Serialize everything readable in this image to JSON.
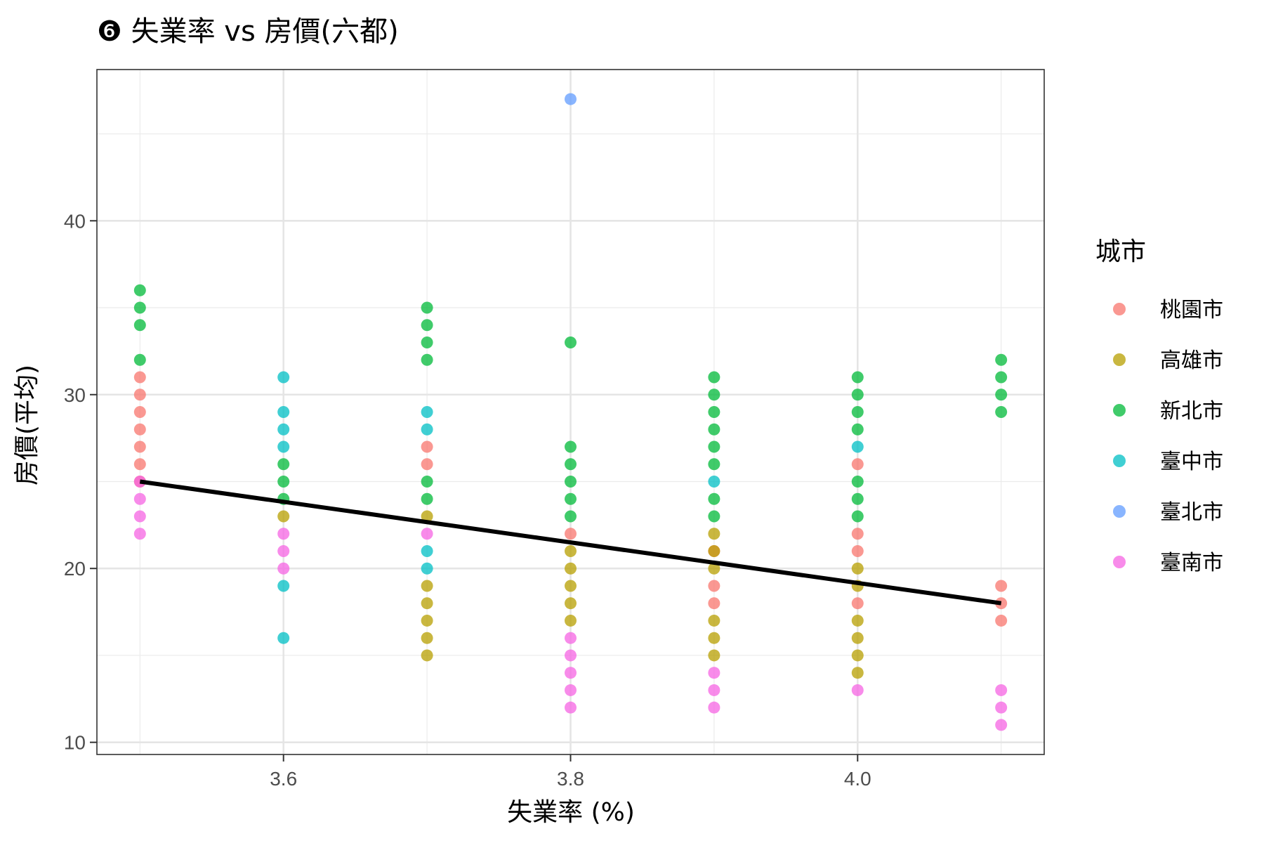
{
  "chart_data": {
    "type": "scatter",
    "title": "❻ 失業率 vs 房價(六都)",
    "xlabel": "失業率 (%)",
    "ylabel": "房價(平均)",
    "xlim": [
      3.47,
      4.13
    ],
    "ylim": [
      9.3,
      48.7
    ],
    "xticks": [
      3.6,
      3.8,
      4.0
    ],
    "xtick_labels": [
      "3.6",
      "3.8",
      "4.0"
    ],
    "yticks": [
      10,
      20,
      30,
      40
    ],
    "ytick_labels": [
      "10",
      "20",
      "30",
      "40"
    ],
    "grid": true,
    "legend": {
      "title": "城市",
      "position": "right"
    },
    "series": [
      {
        "name": "桃園市",
        "color": "#F8766D",
        "points": [
          [
            3.5,
            31
          ],
          [
            3.5,
            30
          ],
          [
            3.5,
            29
          ],
          [
            3.5,
            28
          ],
          [
            3.5,
            27
          ],
          [
            3.5,
            26
          ],
          [
            3.5,
            25
          ],
          [
            3.7,
            27
          ],
          [
            3.7,
            26
          ],
          [
            3.8,
            22
          ],
          [
            3.9,
            21
          ],
          [
            3.9,
            19
          ],
          [
            3.9,
            18
          ],
          [
            4.0,
            26
          ],
          [
            4.0,
            22
          ],
          [
            4.0,
            21
          ],
          [
            4.0,
            18
          ],
          [
            4.1,
            19
          ],
          [
            4.1,
            18
          ],
          [
            4.1,
            17
          ]
        ]
      },
      {
        "name": "高雄市",
        "color": "#B79F00",
        "points": [
          [
            3.6,
            23
          ],
          [
            3.7,
            23
          ],
          [
            3.7,
            19
          ],
          [
            3.7,
            18
          ],
          [
            3.7,
            17
          ],
          [
            3.7,
            16
          ],
          [
            3.7,
            15
          ],
          [
            3.8,
            21
          ],
          [
            3.8,
            20
          ],
          [
            3.8,
            19
          ],
          [
            3.8,
            18
          ],
          [
            3.8,
            17
          ],
          [
            3.9,
            22
          ],
          [
            3.9,
            21
          ],
          [
            3.9,
            20
          ],
          [
            3.9,
            17
          ],
          [
            3.9,
            16
          ],
          [
            3.9,
            15
          ],
          [
            4.0,
            20
          ],
          [
            4.0,
            19
          ],
          [
            4.0,
            17
          ],
          [
            4.0,
            16
          ],
          [
            4.0,
            15
          ],
          [
            4.0,
            14
          ]
        ]
      },
      {
        "name": "新北市",
        "color": "#00BA38",
        "points": [
          [
            3.5,
            36
          ],
          [
            3.5,
            35
          ],
          [
            3.5,
            34
          ],
          [
            3.5,
            32
          ],
          [
            3.6,
            26
          ],
          [
            3.6,
            25
          ],
          [
            3.6,
            24
          ],
          [
            3.7,
            35
          ],
          [
            3.7,
            34
          ],
          [
            3.7,
            33
          ],
          [
            3.7,
            32
          ],
          [
            3.7,
            25
          ],
          [
            3.7,
            24
          ],
          [
            3.8,
            33
          ],
          [
            3.8,
            27
          ],
          [
            3.8,
            26
          ],
          [
            3.8,
            25
          ],
          [
            3.8,
            24
          ],
          [
            3.8,
            23
          ],
          [
            3.9,
            31
          ],
          [
            3.9,
            30
          ],
          [
            3.9,
            29
          ],
          [
            3.9,
            28
          ],
          [
            3.9,
            27
          ],
          [
            3.9,
            26
          ],
          [
            3.9,
            24
          ],
          [
            3.9,
            23
          ],
          [
            4.0,
            31
          ],
          [
            4.0,
            30
          ],
          [
            4.0,
            29
          ],
          [
            4.0,
            28
          ],
          [
            4.0,
            25
          ],
          [
            4.0,
            24
          ],
          [
            4.0,
            23
          ],
          [
            4.1,
            32
          ],
          [
            4.1,
            31
          ],
          [
            4.1,
            30
          ],
          [
            4.1,
            29
          ]
        ]
      },
      {
        "name": "臺中市",
        "color": "#00BFC4",
        "points": [
          [
            3.6,
            31
          ],
          [
            3.6,
            29
          ],
          [
            3.6,
            28
          ],
          [
            3.6,
            27
          ],
          [
            3.6,
            19
          ],
          [
            3.6,
            16
          ],
          [
            3.7,
            29
          ],
          [
            3.7,
            28
          ],
          [
            3.7,
            21
          ],
          [
            3.7,
            20
          ],
          [
            3.9,
            25
          ],
          [
            4.0,
            27
          ]
        ]
      },
      {
        "name": "臺北市",
        "color": "#619CFF",
        "points": [
          [
            3.8,
            47
          ]
        ]
      },
      {
        "name": "臺南市",
        "color": "#F564E3",
        "points": [
          [
            3.5,
            25
          ],
          [
            3.5,
            24
          ],
          [
            3.5,
            23
          ],
          [
            3.5,
            22
          ],
          [
            3.6,
            22
          ],
          [
            3.6,
            21
          ],
          [
            3.6,
            20
          ],
          [
            3.7,
            22
          ],
          [
            3.8,
            16
          ],
          [
            3.8,
            15
          ],
          [
            3.8,
            14
          ],
          [
            3.8,
            13
          ],
          [
            3.8,
            12
          ],
          [
            3.9,
            14
          ],
          [
            3.9,
            13
          ],
          [
            3.9,
            12
          ],
          [
            4.0,
            13
          ],
          [
            4.1,
            13
          ],
          [
            4.1,
            12
          ],
          [
            4.1,
            11
          ]
        ]
      }
    ],
    "trend_line": {
      "color": "#000000",
      "points": [
        [
          3.5,
          25
        ],
        [
          4.1,
          18
        ]
      ]
    }
  }
}
